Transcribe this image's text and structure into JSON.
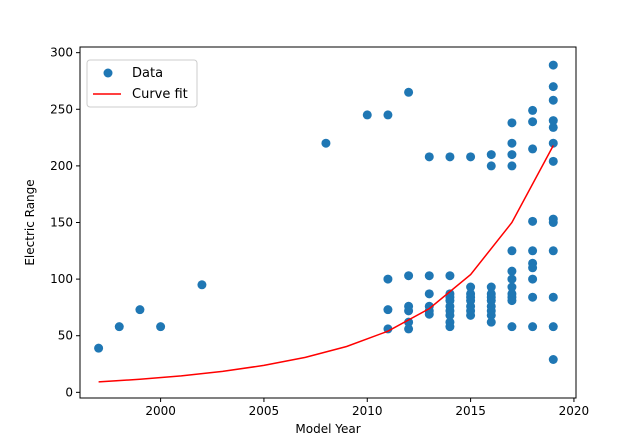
{
  "chart_data": {
    "type": "scatter",
    "xlabel": "Model Year",
    "ylabel": "Electric Range",
    "xlim": [
      1996.1,
      2020.1
    ],
    "ylim": [
      -5,
      305
    ],
    "xticks": [
      2000,
      2005,
      2010,
      2015,
      2020
    ],
    "yticks": [
      0,
      50,
      100,
      150,
      200,
      250,
      300
    ],
    "grid": false,
    "legend_position": "top-left",
    "colors": {
      "data": "#1f77b4",
      "curve_fit": "#ff0000"
    },
    "series": [
      {
        "name": "Data",
        "kind": "scatter",
        "points": [
          [
            1997,
            39
          ],
          [
            1998,
            58
          ],
          [
            1999,
            73
          ],
          [
            2000,
            58
          ],
          [
            2002,
            95
          ],
          [
            2008,
            220
          ],
          [
            2010,
            245
          ],
          [
            2011,
            245
          ],
          [
            2011,
            100
          ],
          [
            2011,
            73
          ],
          [
            2011,
            56
          ],
          [
            2012,
            265
          ],
          [
            2012,
            103
          ],
          [
            2012,
            76
          ],
          [
            2012,
            72
          ],
          [
            2012,
            62
          ],
          [
            2012,
            56
          ],
          [
            2013,
            208
          ],
          [
            2013,
            103
          ],
          [
            2013,
            87
          ],
          [
            2013,
            76
          ],
          [
            2013,
            72
          ],
          [
            2013,
            69
          ],
          [
            2014,
            208
          ],
          [
            2014,
            103
          ],
          [
            2014,
            87
          ],
          [
            2014,
            84
          ],
          [
            2014,
            81
          ],
          [
            2014,
            76
          ],
          [
            2014,
            72
          ],
          [
            2014,
            68
          ],
          [
            2014,
            62
          ],
          [
            2014,
            58
          ],
          [
            2015,
            208
          ],
          [
            2015,
            93
          ],
          [
            2015,
            87
          ],
          [
            2015,
            84
          ],
          [
            2015,
            81
          ],
          [
            2015,
            76
          ],
          [
            2015,
            72
          ],
          [
            2015,
            68
          ],
          [
            2016,
            210
          ],
          [
            2016,
            200
          ],
          [
            2016,
            93
          ],
          [
            2016,
            87
          ],
          [
            2016,
            84
          ],
          [
            2016,
            81
          ],
          [
            2016,
            76
          ],
          [
            2016,
            72
          ],
          [
            2016,
            68
          ],
          [
            2016,
            62
          ],
          [
            2017,
            238
          ],
          [
            2017,
            220
          ],
          [
            2017,
            210
          ],
          [
            2017,
            200
          ],
          [
            2017,
            125
          ],
          [
            2017,
            107
          ],
          [
            2017,
            100
          ],
          [
            2017,
            93
          ],
          [
            2017,
            87
          ],
          [
            2017,
            84
          ],
          [
            2017,
            81
          ],
          [
            2017,
            58
          ],
          [
            2018,
            249
          ],
          [
            2018,
            239
          ],
          [
            2018,
            215
          ],
          [
            2018,
            151
          ],
          [
            2018,
            125
          ],
          [
            2018,
            114
          ],
          [
            2018,
            110
          ],
          [
            2018,
            100
          ],
          [
            2018,
            84
          ],
          [
            2018,
            58
          ],
          [
            2019,
            289
          ],
          [
            2019,
            270
          ],
          [
            2019,
            258
          ],
          [
            2019,
            240
          ],
          [
            2019,
            234
          ],
          [
            2019,
            220
          ],
          [
            2019,
            204
          ],
          [
            2019,
            153
          ],
          [
            2019,
            150
          ],
          [
            2019,
            125
          ],
          [
            2019,
            84
          ],
          [
            2019,
            58
          ],
          [
            2019,
            29
          ]
        ]
      },
      {
        "name": "Curve fit",
        "kind": "line",
        "points": [
          [
            1997,
            9.2
          ],
          [
            1999,
            11.5
          ],
          [
            2001,
            14.5
          ],
          [
            2003,
            18.5
          ],
          [
            2005,
            23.8
          ],
          [
            2007,
            30.9
          ],
          [
            2009,
            40.5
          ],
          [
            2011,
            54
          ],
          [
            2013,
            74
          ],
          [
            2015,
            104
          ],
          [
            2017,
            150
          ],
          [
            2019,
            218
          ]
        ]
      }
    ]
  }
}
